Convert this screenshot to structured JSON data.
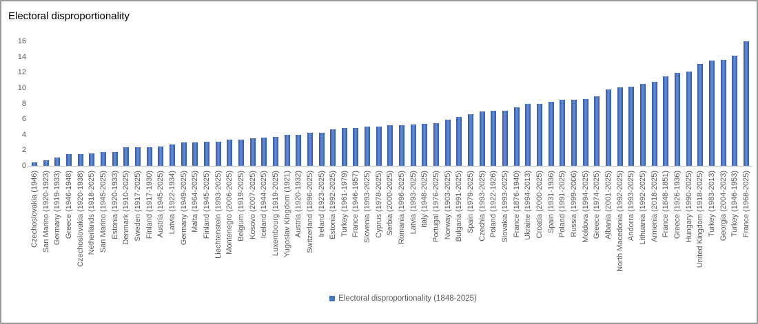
{
  "colors": {
    "bar": "#4472C4",
    "bar_dark": "#3a5fae",
    "bar_light": "#6b90da",
    "axis_line": "#d9d9d9",
    "tick_text": "#595959",
    "title_text": "#000000",
    "border": "#9a9a9a"
  },
  "chart_data": {
    "type": "bar",
    "title": "Electoral disproportionality",
    "legend": [
      "Electoral disproportionality (1848-2025)"
    ],
    "legend_position": "bottom",
    "grid": false,
    "ylim": [
      0,
      16
    ],
    "yticks": [
      0,
      2,
      4,
      6,
      8,
      10,
      12,
      14,
      16
    ],
    "xlabel": "",
    "ylabel": "",
    "categories": [
      "Czechoslovakia (1946)",
      "San Marino (1920-1923)",
      "Germany (1919-1933)",
      "Greece (1946-1948)",
      "Czechoslovakia (1920-1938)",
      "Netherlands (1918-2025)",
      "San Marino (1945-2025)",
      "Estonia (1920-1933)",
      "Denmark (1910-2025)",
      "Sweden (1917-2025)",
      "Finland (1917-1930)",
      "Austria (1945-2025)",
      "Latvia (1922-1934)",
      "Germany (1949-2025)",
      "Malta (1964-2025)",
      "Finland (1945-2025)",
      "Liechtenstein (1993-2025)",
      "Montenegro (2006-2025)",
      "Belgium (1919-2025)",
      "Kosovo (2007-2025)",
      "Iceland (1944-2025)",
      "Luxembourg (1919-2025)",
      "Yugoslav Kingdom (1921)",
      "Austria (1920-1932)",
      "Switzerland (1896-2025)",
      "Ireland (1923-2025)",
      "Estonia (1992-2025)",
      "Turkey (1961-1979)",
      "France (1946-1957)",
      "Slovenia (1993-2025)",
      "Cyprus (1978-2025)",
      "Serbia (2000-2025)",
      "Romania (1996-2025)",
      "Latvia (1993-2025)",
      "Italy (1948-2025)",
      "Portugal (1976-2025)",
      "Norway (1903-2025)",
      "Bulgaria (1991-2025)",
      "Spain (1979-2025)",
      "Czechia (1993-2025)",
      "Poland (1922-1926)",
      "Slovakia (1993-2025)",
      "France (1876-1940)",
      "Ukraine (1994-2013)",
      "Croatia (2000-2025)",
      "Spain (1931-1936)",
      "Poland (1991-2025)",
      "Russia (1999-2006)",
      "Moldova (1994-2025)",
      "Greece (1974-2025)",
      "Albania (2001-2025)",
      "North Macedonia (1992-2025)",
      "Andorra (1993-2025)",
      "Lithuania (1992-2025)",
      "Armenia (2018-2025)",
      "France (1848-1851)",
      "Greece (1926-1936)",
      "Hungary (1990-2025)",
      "United Kingdom (1918-2025)",
      "Turkey (1983-2013)",
      "Georgia (2004-2023)",
      "Turkey (1946-1953)",
      "France (1968-2025)"
    ],
    "values": [
      0.4,
      0.7,
      1.1,
      1.5,
      1.5,
      1.6,
      1.8,
      1.8,
      2.4,
      2.4,
      2.4,
      2.5,
      2.7,
      3.0,
      3.0,
      3.1,
      3.1,
      3.4,
      3.4,
      3.5,
      3.6,
      3.7,
      4.0,
      4.0,
      4.2,
      4.2,
      4.7,
      4.9,
      4.9,
      5.0,
      5.0,
      5.2,
      5.2,
      5.3,
      5.4,
      5.5,
      5.9,
      6.3,
      6.6,
      7.0,
      7.1,
      7.1,
      7.5,
      8.0,
      8.0,
      8.2,
      8.5,
      8.5,
      8.6,
      8.9,
      9.8,
      10.1,
      10.2,
      10.5,
      10.8,
      11.5,
      11.9,
      12.1,
      13.1,
      13.5,
      13.6,
      14.1,
      16.0
    ]
  }
}
